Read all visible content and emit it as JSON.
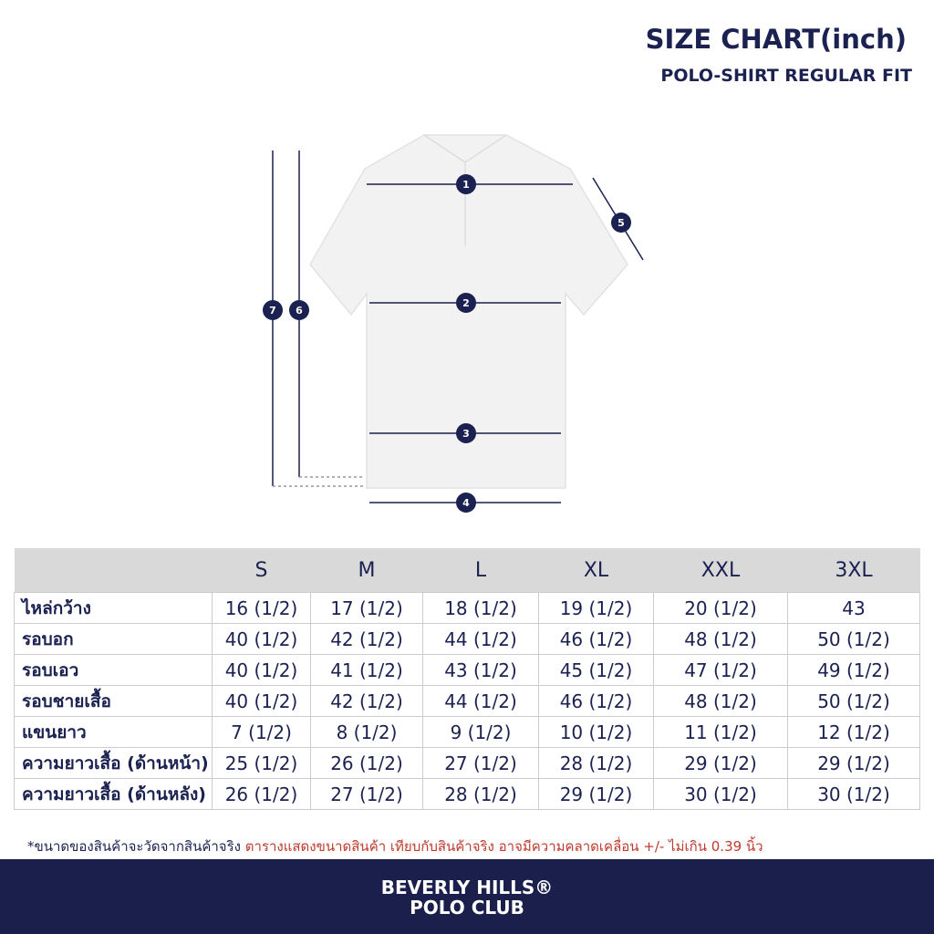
{
  "header": {
    "title": "SIZE CHART(inch)",
    "subtitle": "POLO-SHIRT REGULAR FIT"
  },
  "diagram": {
    "markers": [
      "1",
      "2",
      "3",
      "4",
      "5",
      "6",
      "7"
    ]
  },
  "table": {
    "columns": [
      "S",
      "M",
      "L",
      "XL",
      "XXL",
      "3XL"
    ],
    "rows": [
      [
        "ไหล่กว้าง",
        "16 (1/2)",
        "17 (1/2)",
        "18 (1/2)",
        "19 (1/2)",
        "20 (1/2)",
        "43"
      ],
      [
        "รอบอก",
        "40 (1/2)",
        "42 (1/2)",
        "44 (1/2)",
        "46 (1/2)",
        "48 (1/2)",
        "50 (1/2)"
      ],
      [
        "รอบเอว",
        "40 (1/2)",
        "41 (1/2)",
        "43 (1/2)",
        "45 (1/2)",
        "47 (1/2)",
        "49 (1/2)"
      ],
      [
        "รอบชายเสื้อ",
        "40 (1/2)",
        "42 (1/2)",
        "44 (1/2)",
        "46 (1/2)",
        "48 (1/2)",
        "50 (1/2)"
      ],
      [
        "แขนยาว",
        "7 (1/2)",
        "8 (1/2)",
        "9 (1/2)",
        "10 (1/2)",
        "11 (1/2)",
        "12 (1/2)"
      ],
      [
        "ความยาวเสื้อ (ด้านหน้า)",
        "25 (1/2)",
        "26 (1/2)",
        "27 (1/2)",
        "28 (1/2)",
        "29 (1/2)",
        "29 (1/2)"
      ],
      [
        "ความยาวเสื้อ (ด้านหลัง)",
        "26 (1/2)",
        "27 (1/2)",
        "28 (1/2)",
        "29 (1/2)",
        "30 (1/2)",
        "30 (1/2)"
      ]
    ]
  },
  "footnote": {
    "note": "*ขนาดของสินค้าจะวัดจากสินค้าจริง",
    "warning": "ตารางแสดงขนาดสินค้า เทียบกับสินค้าจริง อาจมีความคลาดเคลื่อน +/- ไม่เกิน 0.39 นิ้ว"
  },
  "footer": {
    "brand_line1": "BEVERLY HILLS®",
    "brand_line2": "POLO CLUB"
  }
}
